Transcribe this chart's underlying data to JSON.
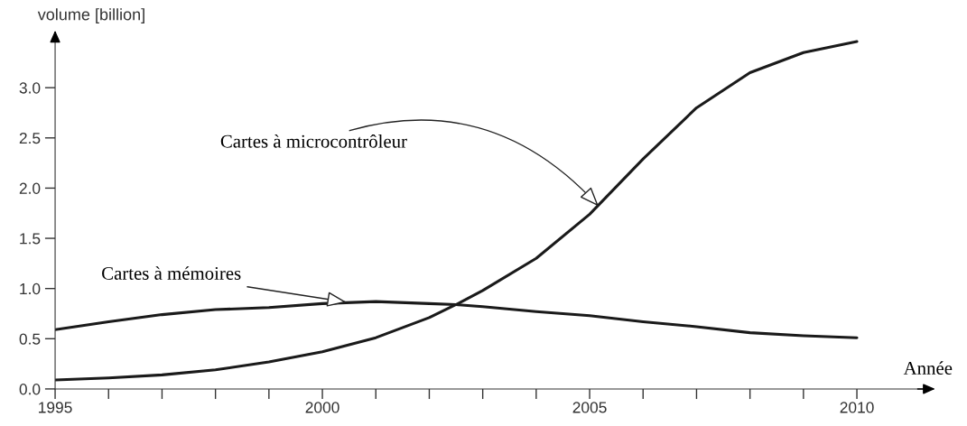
{
  "chart_data": {
    "type": "line",
    "ylabel": "volume [billion]",
    "xlabel": "Année",
    "x": [
      1995,
      1996,
      1997,
      1998,
      1999,
      2000,
      2001,
      2002,
      2002.5,
      2003,
      2004,
      2005,
      2006,
      2007,
      2008,
      2009,
      2010
    ],
    "series": [
      {
        "color": "#1a1a1a",
        "values": [
          0.09,
          0.11,
          0.14,
          0.19,
          0.27,
          0.37,
          0.51,
          0.71,
          0.84,
          0.98,
          1.3,
          1.74,
          2.29,
          2.8,
          3.15,
          3.35,
          3.46
        ]
      },
      {
        "color": "#1a1a1a",
        "values": [
          0.59,
          0.67,
          0.74,
          0.79,
          0.81,
          0.85,
          0.87,
          0.85,
          0.84,
          0.82,
          0.77,
          0.73,
          0.67,
          0.62,
          0.56,
          0.53,
          0.51
        ]
      }
    ],
    "annotations": [
      {
        "text": "Cartes à microcontrôleur",
        "x": 2005.2,
        "y": 1.8
      },
      {
        "text": "Cartes à mémoires",
        "x": 2000.5,
        "y": 0.86
      }
    ],
    "xlim": [
      1995,
      2011.3
    ],
    "ylim": [
      0,
      3.5
    ],
    "xticks": [
      1995,
      {
        "value": 1996,
        "label": null
      },
      {
        "value": 1997,
        "label": null
      },
      {
        "value": 1998,
        "label": null
      },
      {
        "value": 1999,
        "label": null
      },
      2000,
      {
        "value": 2001,
        "label": null
      },
      {
        "value": 2002,
        "label": null
      },
      {
        "value": 2003,
        "label": null
      },
      {
        "value": 2004,
        "label": null
      },
      2005,
      {
        "value": 2006,
        "label": null
      },
      {
        "value": 2007,
        "label": null
      },
      {
        "value": 2008,
        "label": null
      },
      {
        "value": 2009,
        "label": null
      },
      2010
    ],
    "yticks": [
      {
        "value": 0,
        "label": "0.0"
      },
      {
        "value": 0.5,
        "label": "0.5"
      },
      {
        "value": 1,
        "label": "1.0"
      },
      {
        "value": 1.5,
        "label": "1.5"
      },
      {
        "value": 2,
        "label": "2.0"
      },
      {
        "value": 2.5,
        "label": "2.5"
      },
      {
        "value": 3,
        "label": "3.0"
      }
    ],
    "grid": false,
    "legend": false,
    "marker": "none",
    "line_style": "solid"
  }
}
